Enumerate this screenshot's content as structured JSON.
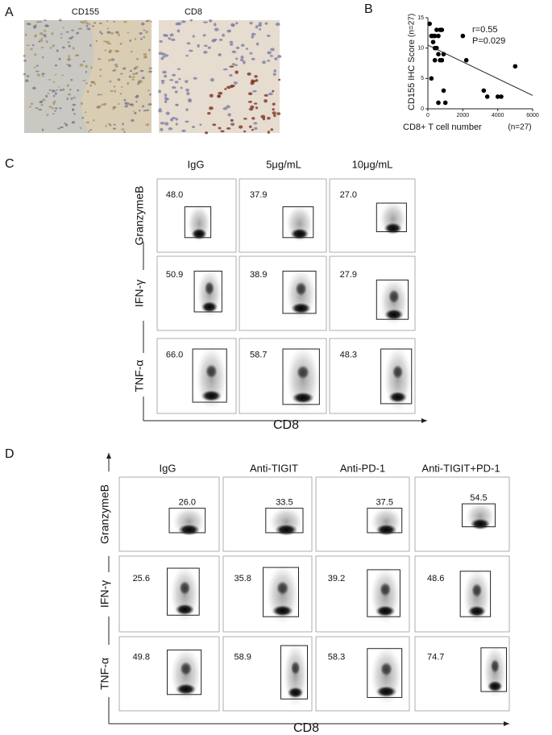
{
  "panel_a": {
    "label": "A",
    "images": [
      {
        "title": "CD155"
      },
      {
        "title": "CD8"
      }
    ]
  },
  "chart_data": {
    "type": "scatter",
    "panel_label": "B",
    "x_label": "CD8+ T cell number",
    "x_note": "(n=27)",
    "y_label": "CD155 IHC Score",
    "y_note": "(n=27)",
    "annotations": [
      "r=0.55",
      "P=0.029"
    ],
    "x": [
      100,
      200,
      300,
      400,
      500,
      600,
      700,
      800,
      300,
      400,
      500,
      600,
      700,
      800,
      900,
      400,
      200,
      600,
      900,
      1000,
      2000,
      2200,
      3200,
      3400,
      4000,
      4200,
      5000
    ],
    "y": [
      14,
      12,
      12,
      12,
      13,
      12,
      13,
      13,
      11,
      10,
      10,
      9,
      8,
      8,
      9,
      8,
      5,
      1,
      3,
      1,
      12,
      8,
      3,
      2,
      2,
      2,
      7
    ],
    "color": "#000000",
    "trendline": {
      "x": [
        0,
        6000
      ],
      "y": [
        10.5,
        2.2
      ]
    },
    "xlim": [
      0,
      6000
    ],
    "ylim": [
      0,
      15
    ],
    "xticks": [
      0,
      2000,
      4000,
      6000
    ],
    "yticks": [
      0,
      5,
      10,
      15
    ]
  },
  "panel_c": {
    "label": "C",
    "columns": [
      "IgG",
      "5μg/mL",
      "10μg/mL"
    ],
    "rows": [
      {
        "marker": "GranzymeB",
        "values": [
          "48.0",
          "37.9",
          "27.0"
        ]
      },
      {
        "marker": "IFN-γ",
        "values": [
          "50.9",
          "38.9",
          "27.9"
        ]
      },
      {
        "marker": "TNF-α",
        "values": [
          "66.0",
          "58.7",
          "48.3"
        ]
      }
    ],
    "x_axis": "CD8"
  },
  "panel_d": {
    "label": "D",
    "columns": [
      "IgG",
      "Anti-TIGIT",
      "Anti-PD-1",
      "Anti-TIGIT+PD-1"
    ],
    "rows": [
      {
        "marker": "GranzymeB",
        "values": [
          "26.0",
          "33.5",
          "37.5",
          "54.5"
        ]
      },
      {
        "marker": "IFN-γ",
        "values": [
          "25.6",
          "35.8",
          "39.2",
          "48.6"
        ]
      },
      {
        "marker": "TNF-α",
        "values": [
          "49.8",
          "58.9",
          "58.3",
          "74.7"
        ]
      }
    ],
    "x_axis": "CD8"
  }
}
